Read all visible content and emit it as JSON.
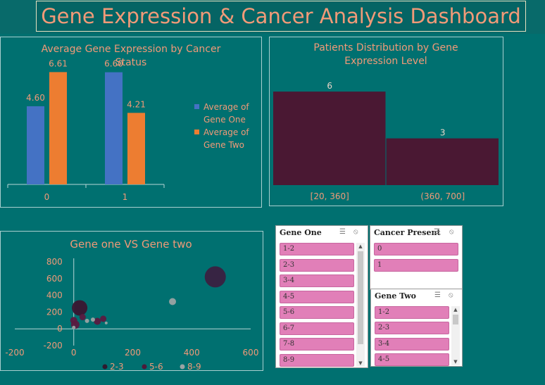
{
  "dashboard": {
    "title": "Gene Expression & Cancer Analysis Dashboard"
  },
  "colors": {
    "background": "#007070",
    "accent": "#f19a78",
    "gene_one": "#4472c4",
    "gene_two": "#ed7d31",
    "hist_bar": "#4a1833",
    "slicer_item": "#e17fb8"
  },
  "chart_data": [
    {
      "type": "bar",
      "title": "Average Gene Expression by Cancer Status",
      "categories": [
        "0",
        "1"
      ],
      "series": [
        {
          "name": "Average of Gene One",
          "values": [
            4.6,
            6.6
          ]
        },
        {
          "name": "Average of Gene Two",
          "values": [
            6.61,
            4.21
          ]
        }
      ],
      "data_labels": [
        [
          "4.60",
          "6.60"
        ],
        [
          "6.61",
          "4.21"
        ]
      ],
      "ylim": [
        0,
        7
      ],
      "grid": false,
      "legend": "right"
    },
    {
      "type": "bar",
      "title": "Patients Distribution by  Gene Expression Level",
      "categories": [
        "[20, 360]",
        "(360, 700]"
      ],
      "values": [
        6,
        3
      ],
      "data_labels": [
        "6",
        "3"
      ],
      "ylim": [
        0,
        7
      ],
      "grid": false
    },
    {
      "type": "scatter",
      "title": "Gene one VS Gene two",
      "xlim": [
        -200,
        600
      ],
      "ylim": [
        -200,
        800
      ],
      "x_ticks": [
        "-200",
        "0",
        "200",
        "400",
        "600"
      ],
      "y_ticks": [
        "-200",
        "0",
        "200",
        "400",
        "600",
        "800"
      ],
      "grid": false,
      "legend": "bottom",
      "legend_entries": [
        {
          "name": "2-3",
          "color": "#2d1b2f"
        },
        {
          "name": "5-6",
          "color": "#4a1a3a"
        },
        {
          "name": "8-9",
          "color": "#9aa3a3"
        }
      ],
      "points": [
        {
          "x": 480,
          "y": 620,
          "size": 30,
          "color": "#3a2040"
        },
        {
          "x": 335,
          "y": 325,
          "size": 10,
          "color": "#9aa3a3"
        },
        {
          "x": 20,
          "y": 250,
          "size": 22,
          "color": "#3a1530"
        },
        {
          "x": 0,
          "y": 100,
          "size": 10,
          "color": "#5a1a40"
        },
        {
          "x": 30,
          "y": 140,
          "size": 9,
          "color": "#5a1a40"
        },
        {
          "x": 100,
          "y": 120,
          "size": 9,
          "color": "#5a1a40"
        },
        {
          "x": 80,
          "y": 90,
          "size": 10,
          "color": "#5a1a40"
        },
        {
          "x": 5,
          "y": 50,
          "size": 12,
          "color": "#5a1a40"
        },
        {
          "x": 45,
          "y": 95,
          "size": 6,
          "color": "#9aa3a3"
        },
        {
          "x": 65,
          "y": 110,
          "size": 6,
          "color": "#9aa3a3"
        },
        {
          "x": 110,
          "y": 70,
          "size": 4,
          "color": "#9aa3a3"
        },
        {
          "x": 0,
          "y": 15,
          "size": 5,
          "color": "#9aa3a3"
        }
      ]
    }
  ],
  "slicers": {
    "gene_one": {
      "title": "Gene One",
      "items": [
        "1-2",
        "2-3",
        "3-4",
        "4-5",
        "5-6",
        "6-7",
        "7-8",
        "8-9"
      ]
    },
    "cancer_present": {
      "title": "Cancer Present",
      "items": [
        "0",
        "1"
      ]
    },
    "gene_two": {
      "title": "Gene Two",
      "items": [
        "1-2",
        "2-3",
        "3-4",
        "4-5"
      ]
    },
    "icons": {
      "multiselect": "multiselect-icon",
      "clear_filter": "clear-filter-icon"
    }
  }
}
